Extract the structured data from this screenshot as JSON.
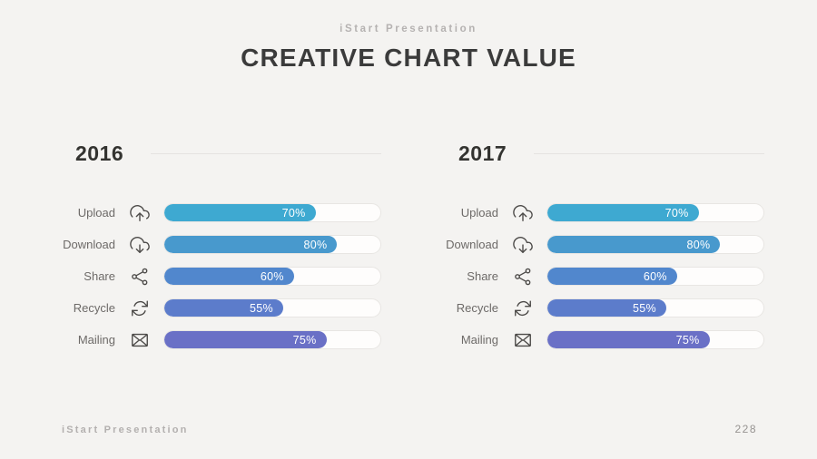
{
  "slide": {
    "eyebrow": "iStart Presentation",
    "title": "CREATIVE CHART VALUE",
    "footer_left": "iStart Presentation",
    "page_number": "228"
  },
  "colors": {
    "background": "#f4f3f1",
    "track_background": "#fefdfc",
    "track_border": "#e8e6e3",
    "value_text": "#ffffff",
    "label_text": "#6d6a68",
    "bar_palette": [
      "#3ea9d1",
      "#4899cd",
      "#5187cd",
      "#5c7ccb",
      "#6a70c6"
    ]
  },
  "chart_data": [
    {
      "type": "bar",
      "orientation": "horizontal",
      "title": "2016",
      "categories": [
        "Upload",
        "Download",
        "Share",
        "Recycle",
        "Mailing"
      ],
      "values": [
        70,
        80,
        60,
        55,
        75
      ],
      "unit": "%",
      "xlim": [
        0,
        100
      ],
      "grid": false,
      "legend": false,
      "icons": [
        "cloud-upload",
        "cloud-download",
        "share",
        "recycle",
        "mail"
      ],
      "bar_colors": [
        "#3ea9d1",
        "#4899cd",
        "#5187cd",
        "#5c7ccb",
        "#6a70c6"
      ]
    },
    {
      "type": "bar",
      "orientation": "horizontal",
      "title": "2017",
      "categories": [
        "Upload",
        "Download",
        "Share",
        "Recycle",
        "Mailing"
      ],
      "values": [
        70,
        80,
        60,
        55,
        75
      ],
      "unit": "%",
      "xlim": [
        0,
        100
      ],
      "grid": false,
      "legend": false,
      "icons": [
        "cloud-upload",
        "cloud-download",
        "share",
        "recycle",
        "mail"
      ],
      "bar_colors": [
        "#3ea9d1",
        "#4899cd",
        "#5187cd",
        "#5c7ccb",
        "#6a70c6"
      ]
    }
  ]
}
